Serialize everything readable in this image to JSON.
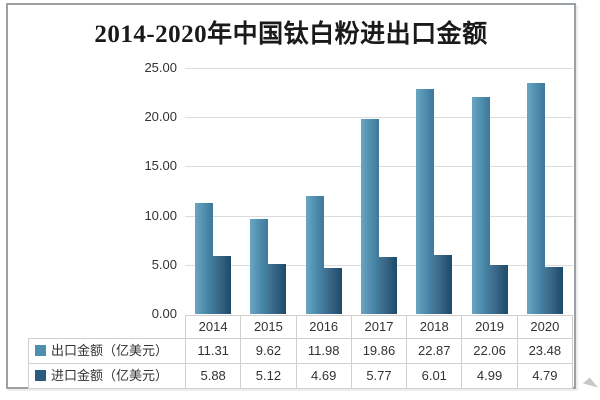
{
  "title": "2014-2020年中国钛白粉进出口金额",
  "colors": {
    "export_swatch": "#4e8fb0",
    "import_swatch": "#2a5a7d",
    "grid": "#dcdcdc",
    "table_border": "#cfcfcf",
    "text": "#333333",
    "card_border": "#9aa0a4"
  },
  "y_axis": {
    "tick_labels": [
      "0.00",
      "5.00",
      "10.00",
      "15.00",
      "20.00",
      "25.00"
    ]
  },
  "chart_data": {
    "type": "bar",
    "title": "2014-2020年中国钛白粉进出口金额",
    "categories": [
      "2014",
      "2015",
      "2016",
      "2017",
      "2018",
      "2019",
      "2020"
    ],
    "series": [
      {
        "name": "出口金额（亿美元）",
        "color": "#4e8fb0",
        "values": [
          11.31,
          9.62,
          11.98,
          19.86,
          22.87,
          22.06,
          23.48
        ]
      },
      {
        "name": "进口金额（亿美元）",
        "color": "#2a5a7d",
        "values": [
          5.88,
          5.12,
          4.69,
          5.77,
          6.01,
          4.99,
          4.79
        ]
      }
    ],
    "ylim": [
      0,
      25
    ],
    "ytick_step": 5,
    "ytick_labels": [
      "0.00",
      "5.00",
      "10.00",
      "15.00",
      "20.00",
      "25.00"
    ],
    "grid": true,
    "legend_position": "table-left",
    "value_format_decimals": 2
  }
}
